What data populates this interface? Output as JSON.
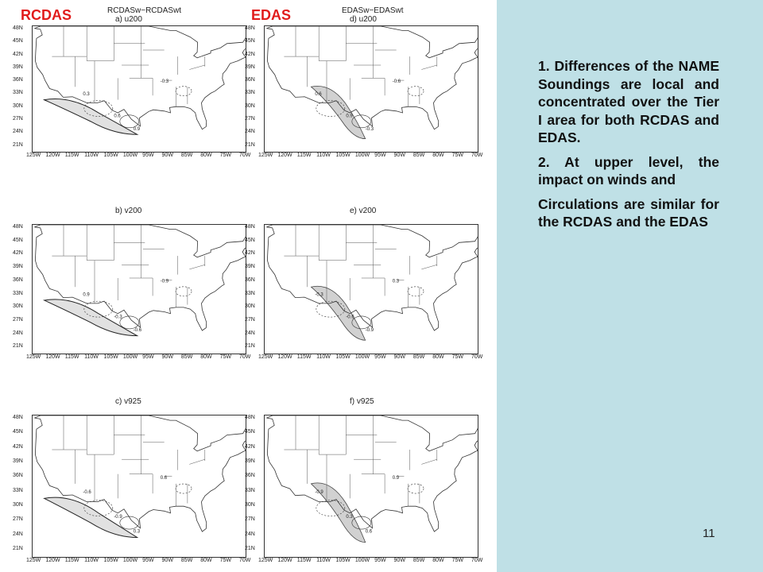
{
  "headers": {
    "rcdas": "RCDAS",
    "edas": "EDAS"
  },
  "panels": [
    {
      "series_title": "RCDASw−RCDASwt",
      "label": "a) u200"
    },
    {
      "series_title": "EDASw−EDASwt",
      "label": "d) u200"
    },
    {
      "series_title": "",
      "label": "b) v200"
    },
    {
      "series_title": "",
      "label": "e) v200"
    },
    {
      "series_title": "",
      "label": "c) v925"
    },
    {
      "series_title": "",
      "label": "f) v925"
    }
  ],
  "lat_ticks": [
    "48N",
    "45N",
    "42N",
    "39N",
    "36N",
    "33N",
    "30N",
    "27N",
    "24N",
    "21N"
  ],
  "lon_ticks": [
    "125W",
    "120W",
    "115W",
    "110W",
    "105W",
    "100W",
    "95W",
    "90W",
    "85W",
    "80W",
    "75W",
    "70W"
  ],
  "contour_labels": [
    "0.3",
    "0.6",
    "0.9",
    "-0.3",
    "-0.6",
    "-0.9"
  ],
  "text": {
    "p1": "1. Differences of the NAME Soundings are local and concentrated over the Tier I area for both RCDAS and EDAS.",
    "p2": "2. At upper level, the impact on winds and",
    "p3": "Circulations are similar for the RCDAS and the EDAS"
  },
  "page_number": "11"
}
